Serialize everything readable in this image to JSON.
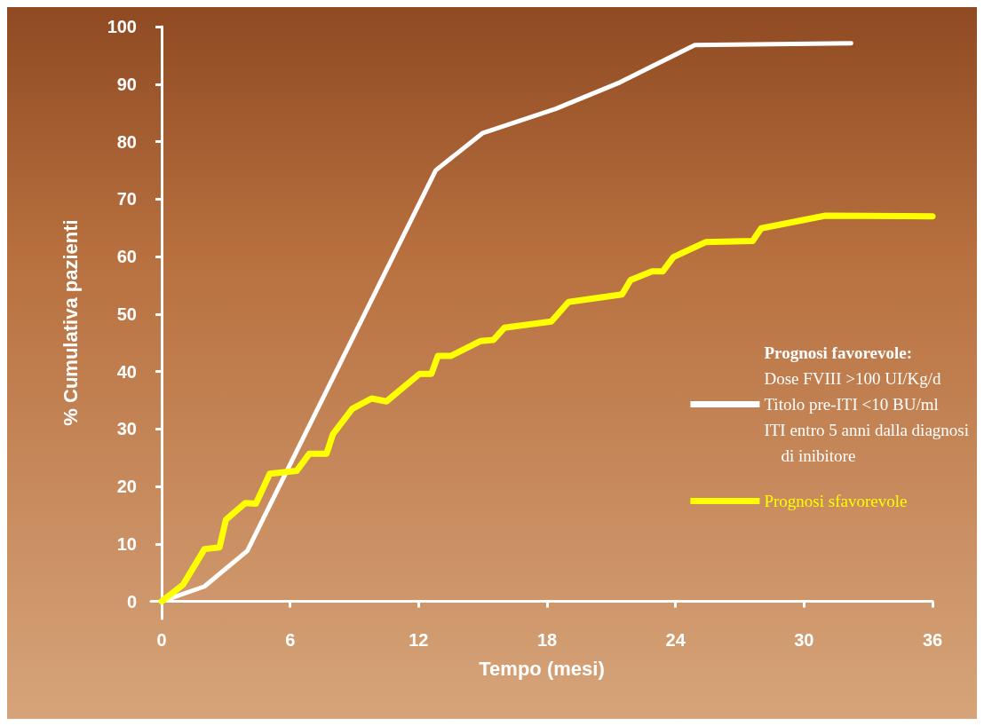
{
  "chart_data": {
    "type": "line",
    "xlabel": "Tempo (mesi)",
    "ylabel": "% Cumulativa pazienti",
    "xlim": [
      -0.5,
      36
    ],
    "xticks": [
      0,
      6,
      12,
      18,
      24,
      30,
      36
    ],
    "ylim": [
      -3,
      100
    ],
    "yticks": [
      0,
      10,
      20,
      30,
      40,
      50,
      60,
      70,
      80,
      90,
      100
    ],
    "grid": false,
    "legend": "right",
    "marker": "none",
    "line_style": "solid",
    "series": [
      {
        "name": "Prognosi favorevole:\nDose FVIII >100 UI/Kg/d\nTitolo pre-ITI <10 BU/ml\nITI entro 5 anni dalla diagnosi\n    di inibitore",
        "color": "#ffffff",
        "x": [
          0,
          2,
          4,
          12.8,
          15,
          18.4,
          21.4,
          24.9,
          32.2
        ],
        "values": [
          0,
          2.6,
          8.8,
          75,
          81.5,
          85.7,
          90.3,
          96.8,
          97.1
        ]
      },
      {
        "name": "Prognosi sfavorevole",
        "color": "#ffff00",
        "x": [
          0,
          1,
          2,
          2.7,
          3,
          3.9,
          4.4,
          5.05,
          6.3,
          6.9,
          7.7,
          8,
          8.9,
          9.8,
          10.5,
          12.05,
          12.6,
          12.9,
          13.5,
          14.9,
          15.5,
          16,
          18.2,
          19,
          21.5,
          21.9,
          22.9,
          23.4,
          23.9,
          25.4,
          27.6,
          28,
          31,
          36
        ],
        "values": [
          0,
          2.9,
          9.1,
          9.4,
          14.2,
          17.1,
          17,
          22.2,
          22.7,
          25.7,
          25.7,
          29.1,
          33.5,
          35.3,
          34.8,
          39.6,
          39.6,
          42.7,
          42.7,
          45.3,
          45.5,
          47.6,
          48.7,
          52.1,
          53.4,
          55.9,
          57.4,
          57.4,
          59.9,
          62.5,
          62.7,
          64.9,
          67.1,
          67
        ]
      }
    ]
  }
}
